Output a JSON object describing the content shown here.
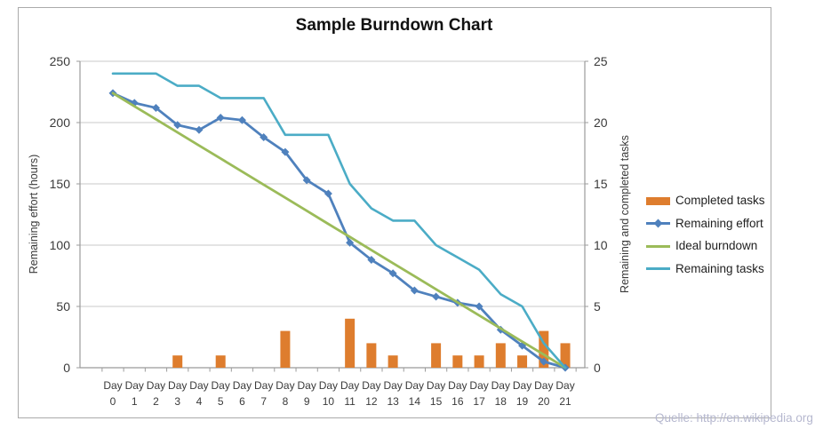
{
  "title": "Sample Burndown Chart",
  "footer": {
    "source_text": "Quelle: http://en.wikipedia.org",
    "color": "#b6b8cf"
  },
  "chart_data": {
    "type": "combo",
    "title": "Sample Burndown Chart",
    "x_tick_prefix": "Day",
    "categories": [
      "0",
      "1",
      "2",
      "3",
      "4",
      "5",
      "6",
      "7",
      "8",
      "9",
      "10",
      "11",
      "12",
      "13",
      "14",
      "15",
      "16",
      "17",
      "18",
      "19",
      "20",
      "21"
    ],
    "left_axis": {
      "title": "Remaining effort (hours)",
      "min": 0,
      "max": 250,
      "step": 50,
      "tick_labels": [
        "0",
        "50",
        "100",
        "150",
        "200",
        "250"
      ]
    },
    "right_axis": {
      "title": "Remaining and completed tasks",
      "min": 0,
      "max": 25,
      "step": 5,
      "tick_labels": [
        "0",
        "5",
        "10",
        "15",
        "20",
        "25"
      ]
    },
    "grid": true,
    "legend_position": "right",
    "series": [
      {
        "name": "Completed tasks",
        "type": "bar",
        "axis": "right",
        "color": "#DE7D2E",
        "values": [
          0,
          0,
          0,
          1,
          0,
          1,
          0,
          0,
          3,
          0,
          0,
          4,
          2,
          1,
          0,
          2,
          1,
          1,
          2,
          1,
          3,
          2
        ]
      },
      {
        "name": "Remaining effort",
        "type": "line",
        "marker": "diamond",
        "axis": "left",
        "color": "#4F81BD",
        "values": [
          224,
          216,
          212,
          198,
          194,
          204,
          202,
          188,
          176,
          153,
          142,
          102,
          88,
          77,
          63,
          58,
          53,
          50,
          31,
          18,
          5,
          0
        ]
      },
      {
        "name": "Ideal burndown",
        "type": "line",
        "axis": "left",
        "color": "#9BBB59",
        "values": [
          224,
          213.3,
          202.7,
          192,
          181.3,
          170.7,
          160,
          149.3,
          138.7,
          128,
          117.3,
          106.7,
          96,
          85.3,
          74.7,
          64,
          53.3,
          42.7,
          32,
          21.3,
          10.7,
          0
        ]
      },
      {
        "name": "Remaining tasks",
        "type": "line",
        "axis": "right",
        "color": "#4BACC6",
        "values": [
          24,
          24,
          24,
          23,
          23,
          22,
          22,
          22,
          19,
          19,
          19,
          15,
          13,
          12,
          12,
          10,
          9,
          8,
          6,
          5,
          2,
          0
        ]
      }
    ],
    "colors": {
      "gridline": "#c9c9c9",
      "axis": "#9b9b9b",
      "tick_text": "#3a3a3a"
    }
  }
}
